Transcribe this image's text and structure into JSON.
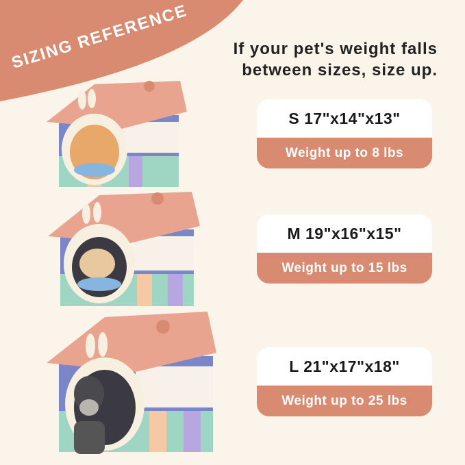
{
  "banner": {
    "label": "SIZING REFERENCE"
  },
  "headline": {
    "line1": "If your pet's weight falls",
    "line2": "between sizes, size up."
  },
  "sizes": [
    {
      "dimensions": "S 17\"x14\"x13\"",
      "weight": "Weight up to 8 lbs",
      "pet": "none"
    },
    {
      "dimensions": "M 19\"x16\"x15\"",
      "weight": "Weight up to 15 lbs",
      "pet": "cat"
    },
    {
      "dimensions": "L 21\"x17\"x18\"",
      "weight": "Weight up to 25 lbs",
      "pet": "dog"
    }
  ],
  "colors": {
    "background": "#fbf4ea",
    "accent": "#d98b72",
    "card": "#ffffff",
    "roof": "#e9a48f"
  }
}
